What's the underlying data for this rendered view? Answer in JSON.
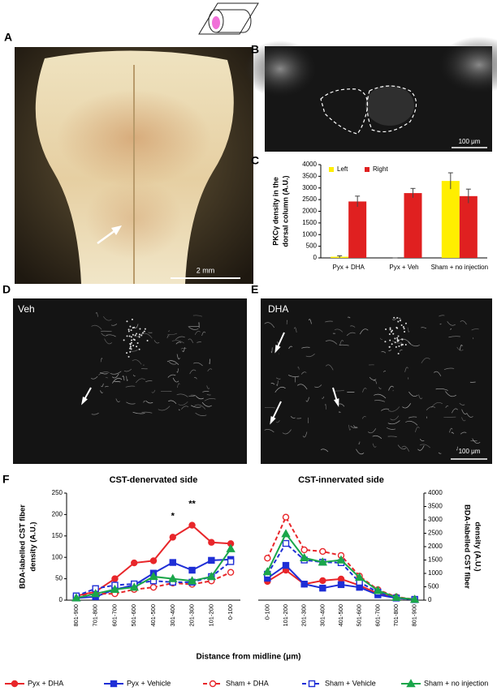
{
  "panels": [
    {
      "label": "A",
      "scale_bar": "2 mm"
    },
    {
      "label": "B",
      "scale_bar": "100 μm"
    },
    {
      "label": "C"
    },
    {
      "label": "D",
      "caption": "Veh"
    },
    {
      "label": "E",
      "caption": "DHA",
      "scale_bar": "100 μm"
    },
    {
      "label": "F"
    }
  ],
  "chart_data": [
    {
      "type": "bar",
      "categories": [
        "Pyx + DHA",
        "Pyx + Veh",
        "Sham + no injection"
      ],
      "y_label": [
        "PKCγ density in the",
        "dorsal column (A.U.)"
      ],
      "ylim": [
        0,
        4000
      ],
      "yticks": [
        0,
        500,
        1000,
        1500,
        2000,
        2500,
        3000,
        3500,
        4000
      ],
      "legend": "top-left",
      "series": [
        {
          "name": "Left",
          "color": "#ffee00",
          "values": [
            50,
            0,
            3300
          ],
          "errors": [
            40,
            0,
            350
          ]
        },
        {
          "name": "Right",
          "color": "#e02020",
          "values": [
            2420,
            2780,
            2650
          ],
          "errors": [
            230,
            200,
            300
          ]
        }
      ]
    },
    {
      "type": "line",
      "x_label": "Distance from midline (μm)",
      "legend": "bottom",
      "subplots": [
        {
          "title": "CST-denervated side",
          "categories": [
            "801-900",
            "701-800",
            "601-700",
            "501-600",
            "401-500",
            "301-400",
            "201-300",
            "101-200",
            "0-100"
          ],
          "y_label": [
            "BDA-labelled CST fiber",
            "density (A.U.)"
          ],
          "y_axis": "left",
          "ylim": [
            0,
            250
          ],
          "yticks": [
            0,
            50,
            100,
            150,
            200,
            250
          ],
          "annotations": [
            {
              "x": "301-400",
              "text": "*"
            },
            {
              "x": "201-300",
              "text": "**"
            }
          ]
        },
        {
          "title": "CST-innervated side",
          "categories": [
            "0-100",
            "101-200",
            "201-300",
            "301-400",
            "401-500",
            "501-600",
            "601-700",
            "701-800",
            "801-900"
          ],
          "y_label": [
            "BDA-labelled CST fiber",
            "density (A.U.)"
          ],
          "y_axis": "right",
          "ylim": [
            0,
            4000
          ],
          "yticks": [
            0,
            500,
            1000,
            1500,
            2000,
            2500,
            3000,
            3500,
            4000
          ]
        }
      ],
      "series": [
        {
          "name": "Pyx + DHA",
          "color": "#e8262a",
          "marker": "circle",
          "filled": true,
          "dashed": false,
          "values": [
            [
              10,
              20,
              50,
              87,
              92,
              147,
              175,
              135,
              132
            ],
            [
              700,
              1120,
              600,
              730,
              790,
              550,
              250,
              100,
              30
            ]
          ]
        },
        {
          "name": "Pyx + Vehicle",
          "color": "#1f2fd6",
          "marker": "square",
          "filled": true,
          "dashed": false,
          "values": [
            [
              5,
              8,
              25,
              35,
              63,
              88,
              70,
              93,
              95
            ],
            [
              820,
              1300,
              600,
              450,
              580,
              480,
              200,
              80,
              30
            ]
          ]
        },
        {
          "name": "Sham + DHA",
          "color": "#e8262a",
          "marker": "circle",
          "filled": false,
          "dashed": true,
          "values": [
            [
              8,
              15,
              15,
              25,
              30,
              40,
              37,
              45,
              65
            ],
            [
              1570,
              3100,
              1880,
              1820,
              1670,
              900,
              390,
              120,
              30
            ]
          ]
        },
        {
          "name": "Sham + Vehicle",
          "color": "#1f2fd6",
          "marker": "square",
          "filled": false,
          "dashed": true,
          "values": [
            [
              10,
              27,
              35,
              38,
              45,
              42,
              42,
              55,
              90
            ],
            [
              970,
              2120,
              1500,
              1420,
              1400,
              670,
              300,
              80,
              20
            ]
          ]
        },
        {
          "name": "Sham + no injection",
          "color": "#1aa64a",
          "marker": "triangle",
          "filled": true,
          "dashed": false,
          "values": [
            [
              5,
              15,
              25,
              30,
              55,
              50,
              45,
              55,
              120
            ],
            [
              1060,
              2480,
              1580,
              1420,
              1500,
              850,
              360,
              100,
              30
            ]
          ]
        }
      ]
    }
  ]
}
